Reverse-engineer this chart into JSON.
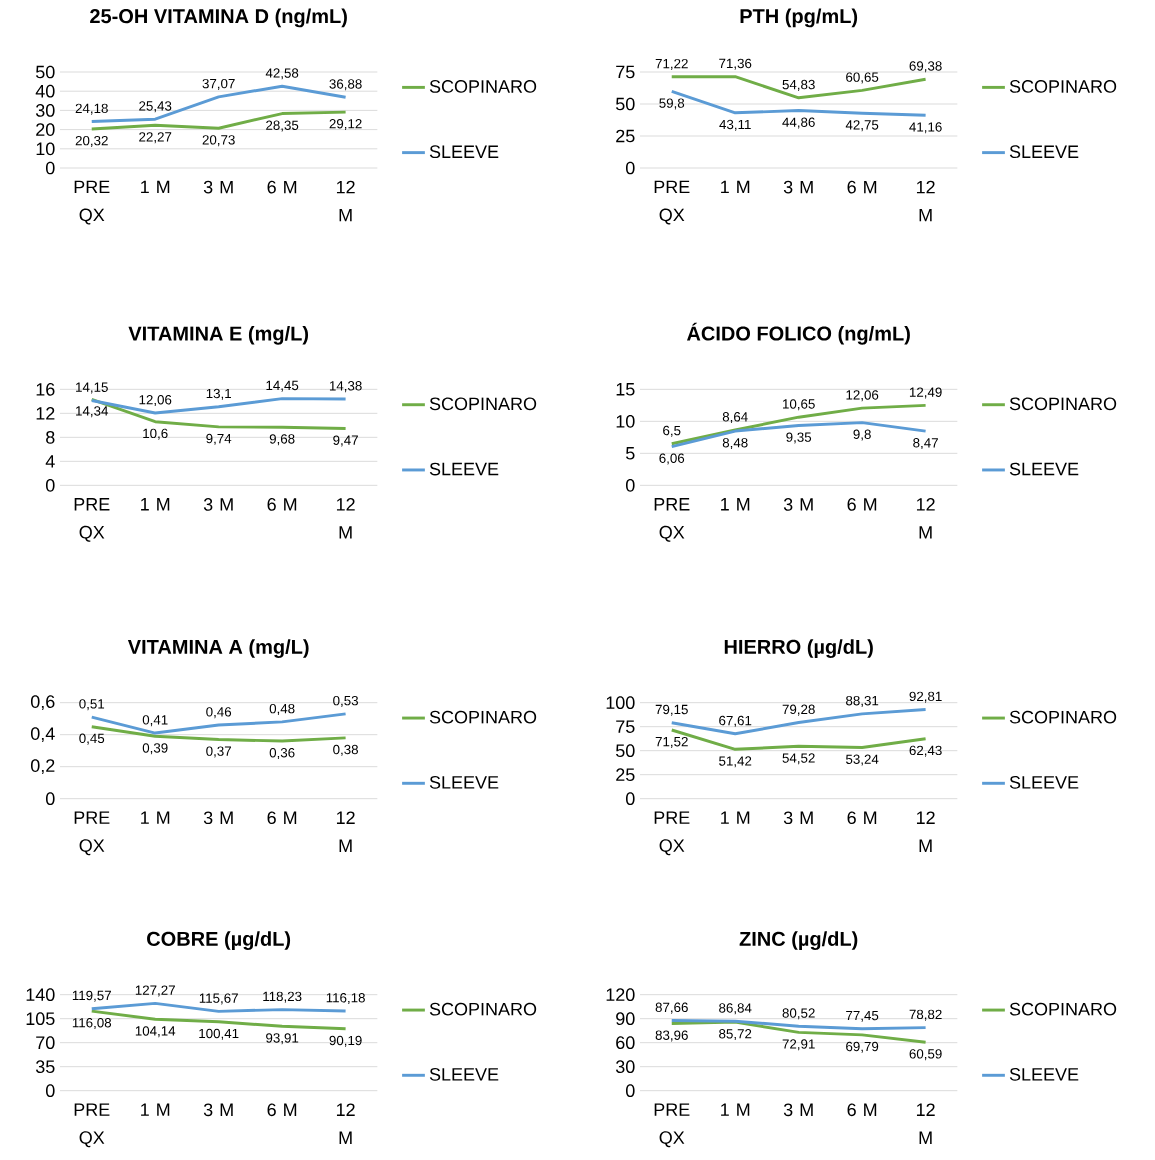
{
  "chart_data": [
    {
      "type": "line",
      "title": "25-OH VITAMINA D (ng/mL)",
      "categories": [
        "PRE QX",
        "1 M",
        "3 M",
        "6 M",
        "12 M"
      ],
      "ylim": [
        0,
        50
      ],
      "yticks": [
        0,
        10,
        20,
        30,
        40,
        50
      ],
      "grid": "y",
      "legend": "right",
      "series": [
        {
          "name": "SCOPINARO",
          "color": "#70ad47",
          "values": [
            20.32,
            22.27,
            20.73,
            28.35,
            29.12
          ],
          "value_labels": [
            "20,32",
            "22,27",
            "20,73",
            "28,35",
            "29,12"
          ]
        },
        {
          "name": "SLEEVE",
          "color": "#5b9bd5",
          "values": [
            24.18,
            25.43,
            37.07,
            42.58,
            36.88
          ],
          "value_labels": [
            "24,18",
            "25,43",
            "37,07",
            "42,58",
            "36,88"
          ]
        }
      ]
    },
    {
      "type": "line",
      "title": "PTH (pg/mL)",
      "categories": [
        "PRE QX",
        "1 M",
        "3 M",
        "6 M",
        "12 M"
      ],
      "ylim": [
        0,
        75
      ],
      "yticks": [
        0,
        25,
        50,
        75
      ],
      "grid": "y",
      "legend": "right",
      "series": [
        {
          "name": "SCOPINARO",
          "color": "#70ad47",
          "values": [
            71.22,
            71.36,
            54.83,
            60.65,
            69.38
          ],
          "value_labels": [
            "71,22",
            "71,36",
            "54,83",
            "60,65",
            "69,38"
          ]
        },
        {
          "name": "SLEEVE",
          "color": "#5b9bd5",
          "values": [
            59.8,
            43.11,
            44.86,
            42.75,
            41.16
          ],
          "value_labels": [
            "59,8",
            "43,11",
            "44,86",
            "42,75",
            "41,16"
          ]
        }
      ]
    },
    {
      "type": "line",
      "title": "VITAMINA E (mg/L)",
      "categories": [
        "PRE QX",
        "1 M",
        "3 M",
        "6 M",
        "12 M"
      ],
      "ylim": [
        0,
        16
      ],
      "yticks": [
        0,
        4,
        8,
        12,
        16
      ],
      "grid": "y",
      "legend": "right",
      "series": [
        {
          "name": "SCOPINARO",
          "color": "#70ad47",
          "values": [
            14.34,
            10.6,
            9.74,
            9.68,
            9.47
          ],
          "value_labels": [
            "14,34",
            "10,6",
            "9,74",
            "9,68",
            "9,47"
          ]
        },
        {
          "name": "SLEEVE",
          "color": "#5b9bd5",
          "values": [
            14.15,
            12.06,
            13.1,
            14.45,
            14.38
          ],
          "value_labels": [
            "14,15",
            "12,06",
            "13,1",
            "14,45",
            "14,38"
          ]
        }
      ]
    },
    {
      "type": "line",
      "title": "ÁCIDO FOLICO (ng/mL)",
      "categories": [
        "PRE QX",
        "1 M",
        "3 M",
        "6 M",
        "12 M"
      ],
      "ylim": [
        0,
        15
      ],
      "yticks": [
        0,
        5,
        10,
        15
      ],
      "grid": "y",
      "legend": "right",
      "series": [
        {
          "name": "SCOPINARO",
          "color": "#70ad47",
          "values": [
            6.5,
            8.64,
            10.65,
            12.06,
            12.49
          ],
          "value_labels": [
            "6,5",
            "8,64",
            "10,65",
            "12,06",
            "12,49"
          ]
        },
        {
          "name": "SLEEVE",
          "color": "#5b9bd5",
          "values": [
            6.06,
            8.48,
            9.35,
            9.8,
            8.47
          ],
          "value_labels": [
            "6,06",
            "8,48",
            "9,35",
            "9,8",
            "8,47"
          ]
        }
      ]
    },
    {
      "type": "line",
      "title": "VITAMINA A (mg/L)",
      "categories": [
        "PRE QX",
        "1 M",
        "3 M",
        "6 M",
        "12 M"
      ],
      "ylim": [
        0,
        0.6
      ],
      "yticks": [
        0,
        {
          "value": 0.2,
          "label": "0,2"
        },
        {
          "value": 0.4,
          "label": "0,4"
        },
        {
          "value": 0.6,
          "label": "0,6"
        }
      ],
      "grid": "y",
      "legend": "right",
      "series": [
        {
          "name": "SCOPINARO",
          "color": "#70ad47",
          "values": [
            0.45,
            0.39,
            0.37,
            0.36,
            0.38
          ],
          "value_labels": [
            "0,45",
            "0,39",
            "0,37",
            "0,36",
            "0,38"
          ]
        },
        {
          "name": "SLEEVE",
          "color": "#5b9bd5",
          "values": [
            0.51,
            0.41,
            0.46,
            0.48,
            0.53
          ],
          "value_labels": [
            "0,51",
            "0,41",
            "0,46",
            "0,48",
            "0,53"
          ]
        }
      ]
    },
    {
      "type": "line",
      "title": "HIERRO (µg/dL)",
      "categories": [
        "PRE QX",
        "1 M",
        "3 M",
        "6 M",
        "12 M"
      ],
      "ylim": [
        0,
        100
      ],
      "yticks": [
        0,
        25,
        50,
        75,
        100
      ],
      "grid": "y",
      "legend": "right",
      "series": [
        {
          "name": "SCOPINARO",
          "color": "#70ad47",
          "values": [
            71.52,
            51.42,
            54.52,
            53.24,
            62.43
          ],
          "value_labels": [
            "71,52",
            "51,42",
            "54,52",
            "53,24",
            "62,43"
          ]
        },
        {
          "name": "SLEEVE",
          "color": "#5b9bd5",
          "values": [
            79.15,
            67.61,
            79.28,
            88.31,
            92.81
          ],
          "value_labels": [
            "79,15",
            "67,61",
            "79,28",
            "88,31",
            "92,81"
          ]
        }
      ]
    },
    {
      "type": "line",
      "title": "COBRE (µg/dL)",
      "categories": [
        "PRE QX",
        "1 M",
        "3 M",
        "6 M",
        "12 M"
      ],
      "ylim": [
        0,
        140
      ],
      "yticks": [
        0,
        35,
        70,
        105,
        140
      ],
      "grid": "y",
      "legend": "right",
      "series": [
        {
          "name": "SCOPINARO",
          "color": "#70ad47",
          "values": [
            116.08,
            104.14,
            100.41,
            93.91,
            90.19
          ],
          "value_labels": [
            "116,08",
            "104,14",
            "100,41",
            "93,91",
            "90,19"
          ]
        },
        {
          "name": "SLEEVE",
          "color": "#5b9bd5",
          "values": [
            119.57,
            127.27,
            115.67,
            118.23,
            116.18
          ],
          "value_labels": [
            "119,57",
            "127,27",
            "115,67",
            "118,23",
            "116,18"
          ]
        }
      ]
    },
    {
      "type": "line",
      "title": "ZINC (µg/dL)",
      "categories": [
        "PRE QX",
        "1 M",
        "3 M",
        "6 M",
        "12 M"
      ],
      "ylim": [
        0,
        120
      ],
      "yticks": [
        0,
        30,
        60,
        90,
        120
      ],
      "grid": "y",
      "legend": "right",
      "series": [
        {
          "name": "SCOPINARO",
          "color": "#70ad47",
          "values": [
            83.96,
            85.72,
            72.91,
            69.79,
            60.59
          ],
          "value_labels": [
            "83,96",
            "85,72",
            "72,91",
            "69,79",
            "60,59"
          ]
        },
        {
          "name": "SLEEVE",
          "color": "#5b9bd5",
          "values": [
            87.66,
            86.84,
            80.52,
            77.45,
            78.82
          ],
          "value_labels": [
            "87,66",
            "86,84",
            "80,52",
            "77,45",
            "78,82"
          ]
        }
      ]
    }
  ]
}
